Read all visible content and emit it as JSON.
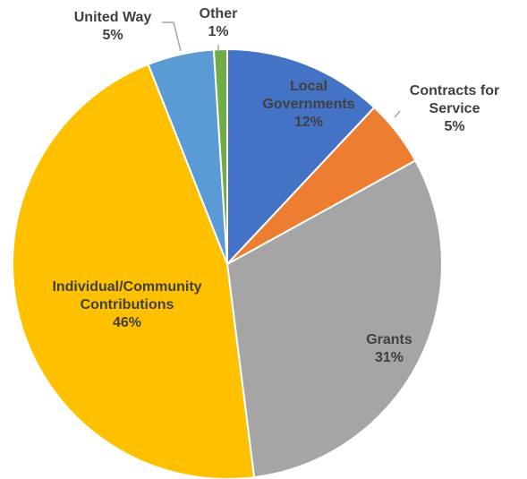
{
  "chart_data": {
    "type": "pie",
    "slices": [
      {
        "label_lines": [
          "Local",
          "Governments"
        ],
        "percent_label": "12%",
        "value": 12,
        "color": "#4472c4"
      },
      {
        "label_lines": [
          "Contracts for",
          "Service"
        ],
        "percent_label": "5%",
        "value": 5,
        "color": "#ed7d31"
      },
      {
        "label_lines": [
          "Grants"
        ],
        "percent_label": "31%",
        "value": 31,
        "color": "#a5a5a5"
      },
      {
        "label_lines": [
          "Individual/Community",
          "Contributions"
        ],
        "percent_label": "46%",
        "value": 46,
        "color": "#ffc000"
      },
      {
        "label_lines": [
          "United Way"
        ],
        "percent_label": "5%",
        "value": 5,
        "color": "#5b9bd5"
      },
      {
        "label_lines": [
          "Other"
        ],
        "percent_label": "1%",
        "value": 1,
        "color": "#70ad47"
      }
    ],
    "start_angle_deg": 0,
    "direction": "clockwise",
    "slice_border_color": "#ffffff",
    "label_color": "#404040"
  }
}
